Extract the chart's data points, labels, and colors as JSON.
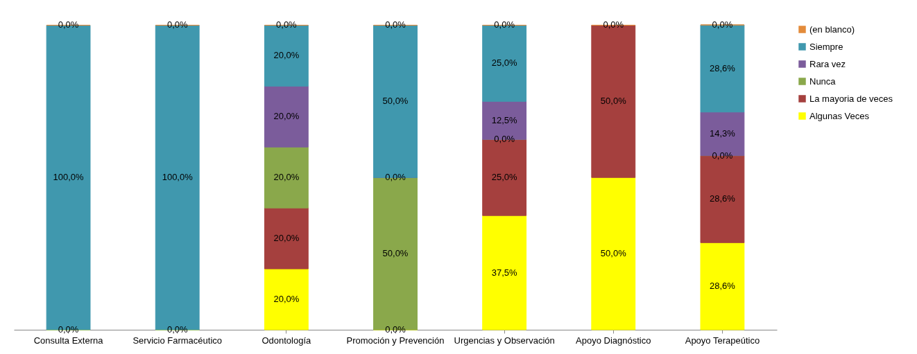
{
  "chart_data": {
    "type": "bar",
    "stacked": true,
    "legend": "right",
    "tick_labels": "x",
    "categories": [
      "Consulta Externa",
      "Servicio Farmacéutico",
      "Odontología",
      "Promoción y Prevención",
      "Urgencias y Observación",
      "Apoyo Diagnóstico",
      "Apoyo Terapeútico"
    ],
    "series": [
      {
        "name": "Algunas Veces",
        "color": "#ffff00",
        "values": [
          0,
          0,
          20,
          0,
          37.5,
          50,
          28.6
        ],
        "value_labels": [
          "0,0%",
          "0,0%",
          "20,0%",
          "0,0%",
          "37,5%",
          "50,0%",
          "28,6%"
        ]
      },
      {
        "name": "La mayoria de veces",
        "color": "#a5403e",
        "values": [
          null,
          null,
          20,
          null,
          25,
          50,
          28.6
        ],
        "value_labels": [
          null,
          null,
          "20,0%",
          null,
          "25,0%",
          "50,0%",
          "28,6%"
        ]
      },
      {
        "name": "Nunca",
        "color": "#8aa84b",
        "values": [
          null,
          null,
          20,
          50,
          0,
          null,
          0
        ],
        "value_labels": [
          null,
          null,
          "20,0%",
          "50,0%",
          "0,0%",
          null,
          "0,0%"
        ]
      },
      {
        "name": "Rara vez",
        "color": "#7b5c9b",
        "values": [
          null,
          null,
          20,
          0,
          12.5,
          null,
          14.3
        ],
        "value_labels": [
          null,
          null,
          "20,0%",
          "0,0%",
          "12,5%",
          null,
          "14,3%"
        ]
      },
      {
        "name": "Siempre",
        "color": "#4098ae",
        "values": [
          100,
          100,
          20,
          50,
          25,
          null,
          28.6
        ],
        "value_labels": [
          "100,0%",
          "100,0%",
          "20,0%",
          "50,0%",
          "25,0%",
          null,
          "28,6%"
        ]
      },
      {
        "name": "(en blanco)",
        "color": "#e38b3a",
        "values": [
          0,
          0,
          0,
          0,
          0,
          0,
          0
        ],
        "value_labels": [
          "0,0%",
          "0,0%",
          "0,0%",
          "0,0%",
          "0,0%",
          "0,0%",
          "0,0%"
        ]
      }
    ]
  }
}
